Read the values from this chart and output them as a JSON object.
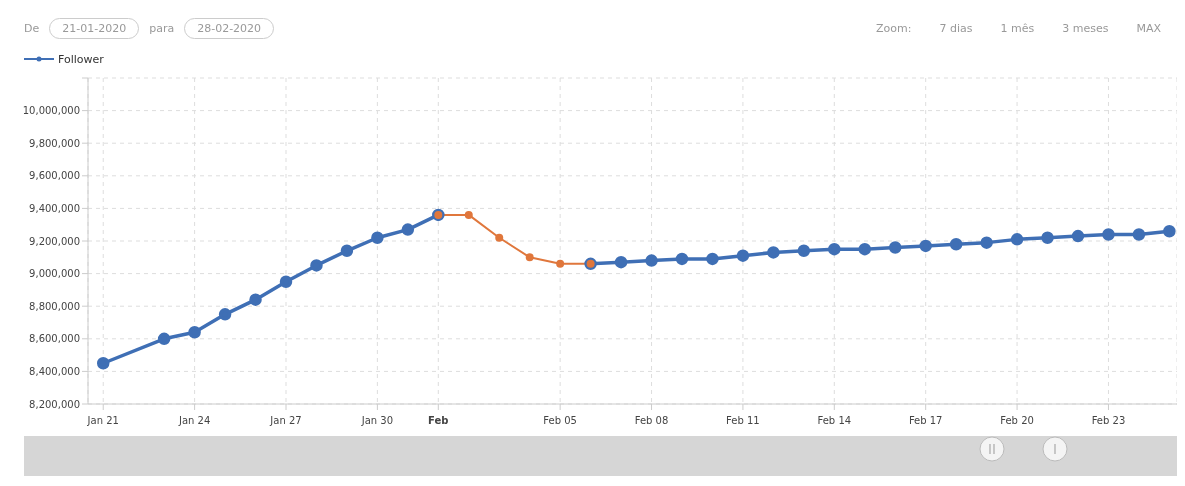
{
  "chart_data": {
    "type": "line",
    "annotations": [
      "De",
      "21-01-2020",
      "para",
      "28-02-2020",
      "Zoom:",
      "7 dias",
      "1 mês",
      "3 meses",
      "MAX"
    ],
    "x": [
      "2020-01-21",
      "2020-01-23",
      "2020-01-24",
      "2020-01-25",
      "2020-01-26",
      "2020-01-27",
      "2020-01-28",
      "2020-01-29",
      "2020-01-30",
      "2020-01-31",
      "2020-02-01",
      "2020-02-02",
      "2020-02-03",
      "2020-02-04",
      "2020-02-05",
      "2020-02-06",
      "2020-02-07",
      "2020-02-08",
      "2020-02-09",
      "2020-02-10",
      "2020-02-11",
      "2020-02-12",
      "2020-02-13",
      "2020-02-14",
      "2020-02-15",
      "2020-02-16",
      "2020-02-17",
      "2020-02-18",
      "2020-02-19",
      "2020-02-20",
      "2020-02-21",
      "2020-02-22",
      "2020-02-23",
      "2020-02-24",
      "2020-02-25"
    ],
    "series": [
      {
        "name": "Follower",
        "color": "#3f6fb5",
        "values": [
          8450000,
          8600000,
          8640000,
          8750000,
          8840000,
          8950000,
          9050000,
          9140000,
          9220000,
          9270000,
          9360000,
          null,
          null,
          null,
          null,
          9060000,
          9070000,
          9080000,
          9090000,
          9090000,
          9110000,
          9130000,
          9140000,
          9150000,
          9150000,
          9160000,
          9170000,
          9180000,
          9190000,
          9210000,
          9220000,
          9230000,
          9240000,
          9240000,
          9260000
        ]
      },
      {
        "color": "#e0773c",
        "x": [
          "2020-02-01",
          "2020-02-02",
          "2020-02-03",
          "2020-02-04",
          "2020-02-05",
          "2020-02-06"
        ],
        "values": [
          9360000,
          9360000,
          9220000,
          9100000,
          9060000,
          9060000
        ]
      }
    ],
    "xlim": [
      "2020-01-20T12:00",
      "2020-02-25T06:00"
    ],
    "xticks": [
      {
        "value": "2020-01-21",
        "label": "Jan 21"
      },
      {
        "value": "2020-01-24",
        "label": "Jan 24"
      },
      {
        "value": "2020-01-27",
        "label": "Jan 27"
      },
      {
        "value": "2020-01-30",
        "label": "Jan 30"
      },
      {
        "value": "2020-02-01",
        "label": "Feb"
      },
      {
        "value": "2020-02-05",
        "label": "Feb 05"
      },
      {
        "value": "2020-02-08",
        "label": "Feb 08"
      },
      {
        "value": "2020-02-11",
        "label": "Feb 11"
      },
      {
        "value": "2020-02-14",
        "label": "Feb 14"
      },
      {
        "value": "2020-02-17",
        "label": "Feb 17"
      },
      {
        "value": "2020-02-20",
        "label": "Feb 20"
      },
      {
        "value": "2020-02-23",
        "label": "Feb 23"
      }
    ],
    "ylim": [
      8200000,
      10200000
    ],
    "yticks": [
      {
        "value": 8200000,
        "label": "8,200,000"
      },
      {
        "value": 8400000,
        "label": "8,400,000"
      },
      {
        "value": 8600000,
        "label": "8,600,000"
      },
      {
        "value": 8800000,
        "label": "8,800,000"
      },
      {
        "value": 9000000,
        "label": "9,000,000"
      },
      {
        "value": 9200000,
        "label": "9,200,000"
      },
      {
        "value": 9400000,
        "label": "9,400,000"
      },
      {
        "value": 9600000,
        "label": "9,600,000"
      },
      {
        "value": 9800000,
        "label": "9,800,000"
      },
      {
        "value": 10000000,
        "label": "10,000,000"
      },
      {
        "value": 10200000,
        "label": null
      }
    ],
    "grid": true,
    "legend": "top left",
    "marker": "circle",
    "line_style": "solid"
  }
}
